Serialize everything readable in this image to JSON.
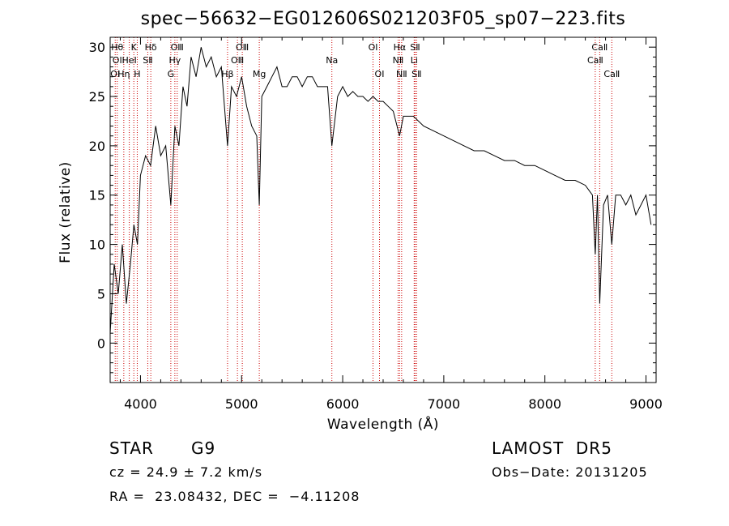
{
  "chart_data": {
    "type": "line",
    "title": "spec−56632−EG012606S021203F05_sp07−223.fits",
    "xlabel": "Wavelength (Å)",
    "ylabel": "Flux (relative)",
    "xlim": [
      3700,
      9100
    ],
    "ylim": [
      -4,
      31
    ],
    "xticks": [
      4000,
      5000,
      6000,
      7000,
      8000,
      9000
    ],
    "yticks": [
      0,
      5,
      10,
      15,
      20,
      25,
      30
    ],
    "line_color": "#000000",
    "marker_color": "#cc0000",
    "grid": false,
    "series": [
      {
        "x": [
          3700,
          3740,
          3780,
          3820,
          3860,
          3900,
          3935,
          3970,
          4000,
          4050,
          4100,
          4150,
          4200,
          4250,
          4300,
          4340,
          4380,
          4420,
          4460,
          4500,
          4550,
          4600,
          4650,
          4700,
          4750,
          4800,
          4861,
          4900,
          4950,
          5000,
          5050,
          5100,
          5150,
          5175,
          5200,
          5250,
          5300,
          5350,
          5400,
          5450,
          5500,
          5550,
          5600,
          5650,
          5700,
          5750,
          5800,
          5850,
          5893,
          5950,
          6000,
          6050,
          6100,
          6150,
          6200,
          6250,
          6300,
          6350,
          6400,
          6450,
          6500,
          6563,
          6600,
          6650,
          6700,
          6800,
          6900,
          7000,
          7100,
          7200,
          7300,
          7400,
          7500,
          7600,
          7700,
          7800,
          7900,
          8000,
          8100,
          8200,
          8300,
          8400,
          8470,
          8498,
          8520,
          8542,
          8580,
          8620,
          8662,
          8700,
          8750,
          8800,
          8850,
          8900,
          8950,
          9000,
          9050
        ],
        "y": [
          1,
          8,
          5,
          10,
          4,
          8,
          12,
          10,
          17,
          19,
          18,
          22,
          19,
          20,
          14,
          22,
          20,
          26,
          24,
          29,
          27,
          30,
          28,
          29,
          27,
          28,
          20,
          26,
          25,
          27,
          24,
          22,
          21,
          14,
          25,
          26,
          27,
          28,
          26,
          26,
          27,
          27,
          26,
          27,
          27,
          26,
          26,
          26,
          20,
          25,
          26,
          25,
          25.5,
          25,
          25,
          24.5,
          25,
          24.5,
          24.5,
          24,
          23.5,
          21,
          23,
          23,
          23,
          22,
          21.5,
          21,
          20.5,
          20,
          19.5,
          19.5,
          19,
          18.5,
          18.5,
          18,
          18,
          17.5,
          17,
          16.5,
          16.5,
          16,
          15,
          9,
          15,
          4,
          14,
          15,
          10,
          15,
          15,
          14,
          15,
          13,
          14,
          15,
          12
        ]
      }
    ],
    "lines": [
      {
        "wl": 3750,
        "labels": [
          {
            "t": "OⅠ",
            "row": 2
          }
        ]
      },
      {
        "wl": 3770,
        "labels": [
          {
            "t": "Hθ",
            "row": 0
          },
          {
            "t": "OⅠ",
            "row": 1
          }
        ]
      },
      {
        "wl": 3835,
        "labels": [
          {
            "t": "Hη",
            "row": 2
          }
        ]
      },
      {
        "wl": 3889,
        "labels": [
          {
            "t": "HeⅠ",
            "row": 1
          }
        ]
      },
      {
        "wl": 3934,
        "labels": [
          {
            "t": "K",
            "row": 0
          }
        ]
      },
      {
        "wl": 3968,
        "labels": [
          {
            "t": "H",
            "row": 2
          }
        ]
      },
      {
        "wl": 4072,
        "labels": [
          {
            "t": "SⅡ",
            "row": 1
          }
        ]
      },
      {
        "wl": 4102,
        "labels": [
          {
            "t": "Hδ",
            "row": 0
          }
        ]
      },
      {
        "wl": 4300,
        "labels": [
          {
            "t": "G",
            "row": 2
          }
        ]
      },
      {
        "wl": 4340,
        "labels": [
          {
            "t": "Hγ",
            "row": 1
          }
        ]
      },
      {
        "wl": 4363,
        "labels": [
          {
            "t": "OⅢ",
            "row": 0
          }
        ]
      },
      {
        "wl": 4861,
        "labels": [
          {
            "t": "Hβ",
            "row": 2
          }
        ]
      },
      {
        "wl": 4959,
        "labels": [
          {
            "t": "OⅢ",
            "row": 1
          }
        ]
      },
      {
        "wl": 5007,
        "labels": [
          {
            "t": "OⅢ",
            "row": 0
          }
        ]
      },
      {
        "wl": 5175,
        "labels": [
          {
            "t": "Mg",
            "row": 2
          }
        ]
      },
      {
        "wl": 5893,
        "labels": [
          {
            "t": "Na",
            "row": 1
          }
        ]
      },
      {
        "wl": 6300,
        "labels": [
          {
            "t": "OⅠ",
            "row": 0
          }
        ]
      },
      {
        "wl": 6364,
        "labels": [
          {
            "t": "OⅠ",
            "row": 2
          }
        ]
      },
      {
        "wl": 6548,
        "labels": [
          {
            "t": "NⅡ",
            "row": 1
          }
        ]
      },
      {
        "wl": 6563,
        "labels": [
          {
            "t": "Hα",
            "row": 0
          }
        ]
      },
      {
        "wl": 6583,
        "labels": [
          {
            "t": "NⅡ",
            "row": 2
          }
        ]
      },
      {
        "wl": 6707,
        "labels": [
          {
            "t": "Li",
            "row": 1
          }
        ]
      },
      {
        "wl": 6716,
        "labels": [
          {
            "t": "SⅡ",
            "row": 0
          }
        ]
      },
      {
        "wl": 6731,
        "labels": [
          {
            "t": "SⅡ",
            "row": 2
          }
        ]
      },
      {
        "wl": 8498,
        "labels": [
          {
            "t": "CaⅡ",
            "row": 1
          }
        ]
      },
      {
        "wl": 8542,
        "labels": [
          {
            "t": "CaⅡ",
            "row": 0
          }
        ]
      },
      {
        "wl": 8662,
        "labels": [
          {
            "t": "CaⅡ",
            "row": 2
          }
        ]
      }
    ]
  },
  "footer": {
    "object_class": "STAR",
    "subclass": "G9",
    "survey": "LAMOST  DR5",
    "cz": "cz = 24.9 ± 7.2 km/s",
    "obs_date": "Obs−Date: 20131205",
    "coords": "RA =  23.08432, DEC =  −4.11208"
  }
}
